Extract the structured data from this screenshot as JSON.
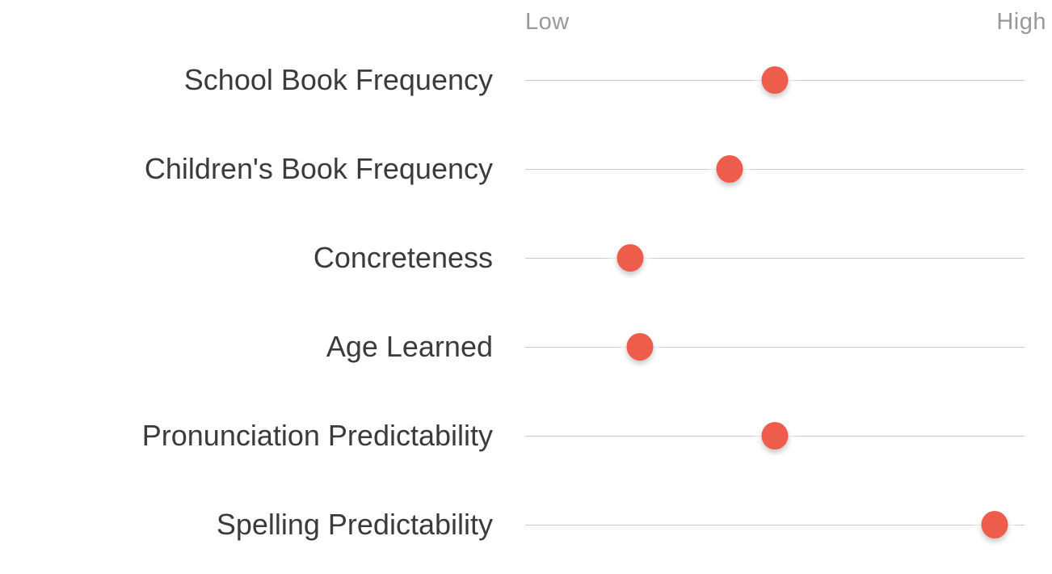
{
  "colors": {
    "background": "#ffffff",
    "dot": "#ee5c4c",
    "line": "#c9c9c9",
    "label": "#3b3b3b",
    "scale_label": "#999999"
  },
  "scale": {
    "low_label": "Low",
    "high_label": "High"
  },
  "chart_data": {
    "type": "scatter",
    "title": "",
    "xlabel": "",
    "ylabel": "",
    "axis_endpoint_labels": [
      "Low",
      "High"
    ],
    "xlim": [
      0,
      100
    ],
    "grid": "horizontal track line per category",
    "legend": "none",
    "categories": [
      "School Book Frequency",
      "Children's Book Frequency",
      "Concreteness",
      "Age Learned",
      "Pronunciation Predictability",
      "Spelling Predictability"
    ],
    "values_percent_of_axis": [
      50,
      41,
      21,
      23,
      50,
      94
    ]
  }
}
